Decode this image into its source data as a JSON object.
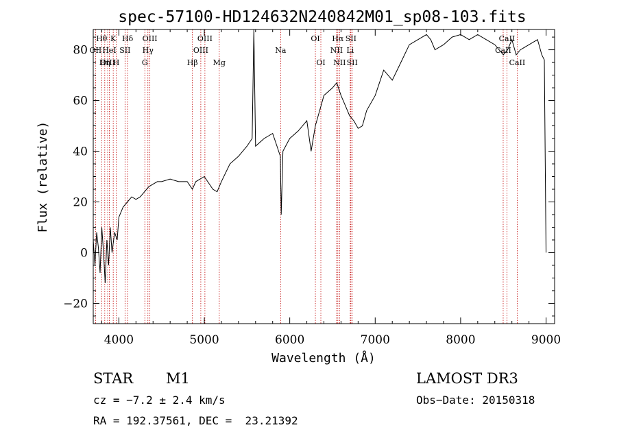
{
  "chart_data": {
    "type": "line",
    "title": "spec-57100-HD124632N240842M01_sp08-103.fits",
    "xlabel": "Wavelength (Å)",
    "ylabel": "Flux (relative)",
    "xlim": [
      3700,
      9100
    ],
    "ylim": [
      -28,
      88
    ],
    "xticks": [
      4000,
      5000,
      6000,
      7000,
      8000,
      9000
    ],
    "yticks": [
      -20,
      0,
      20,
      40,
      60,
      80
    ],
    "series": [
      {
        "name": "spectrum",
        "x": [
          3700,
          3720,
          3740,
          3760,
          3780,
          3800,
          3820,
          3840,
          3860,
          3880,
          3900,
          3920,
          3950,
          3980,
          4000,
          4050,
          4100,
          4150,
          4200,
          4250,
          4300,
          4350,
          4400,
          4450,
          4500,
          4600,
          4700,
          4800,
          4860,
          4900,
          5000,
          5100,
          5150,
          5200,
          5300,
          5400,
          5500,
          5560,
          5580,
          5600,
          5700,
          5800,
          5850,
          5890,
          5900,
          5920,
          6000,
          6100,
          6200,
          6250,
          6300,
          6400,
          6500,
          6550,
          6600,
          6650,
          6700,
          6750,
          6800,
          6850,
          6900,
          7000,
          7100,
          7150,
          7200,
          7300,
          7400,
          7500,
          7600,
          7650,
          7700,
          7800,
          7900,
          8000,
          8100,
          8200,
          8300,
          8400,
          8450,
          8500,
          8550,
          8600,
          8650,
          8700,
          8800,
          8900,
          8950,
          8980,
          9000
        ],
        "y": [
          5,
          -5,
          8,
          2,
          -8,
          10,
          0,
          -12,
          5,
          -5,
          10,
          0,
          8,
          5,
          14,
          18,
          20,
          22,
          21,
          22,
          24,
          26,
          27,
          28,
          28,
          29,
          28,
          28,
          25,
          28,
          30,
          25,
          24,
          28,
          35,
          38,
          42,
          45,
          88,
          42,
          45,
          47,
          42,
          38,
          15,
          40,
          45,
          48,
          52,
          40,
          50,
          62,
          65,
          67,
          62,
          58,
          54,
          52,
          49,
          50,
          56,
          62,
          72,
          70,
          68,
          75,
          82,
          84,
          86,
          84,
          80,
          82,
          85,
          86,
          84,
          86,
          84,
          82,
          80,
          78,
          80,
          84,
          78,
          80,
          82,
          84,
          78,
          76,
          0
        ]
      }
    ],
    "emission_lines": [
      {
        "label": "Hθ",
        "x": 3798,
        "row": 1
      },
      {
        "label": "K",
        "x": 3934,
        "row": 1
      },
      {
        "label": "Hδ",
        "x": 4102,
        "row": 1
      },
      {
        "label": "OIII",
        "x": 4363,
        "row": 1
      },
      {
        "label": "OIII",
        "x": 5007,
        "row": 1
      },
      {
        "label": "OI",
        "x": 6300,
        "row": 1
      },
      {
        "label": "Hα",
        "x": 6563,
        "row": 1
      },
      {
        "label": "SII",
        "x": 6716,
        "row": 1
      },
      {
        "label": "CaII",
        "x": 8542,
        "row": 1
      },
      {
        "label": "OII",
        "x": 3727,
        "row": 2
      },
      {
        "label": "HeI",
        "x": 3889,
        "row": 2
      },
      {
        "label": "SII",
        "x": 4072,
        "row": 2
      },
      {
        "label": "Hγ",
        "x": 4340,
        "row": 2
      },
      {
        "label": "OIII",
        "x": 4959,
        "row": 2
      },
      {
        "label": "Na",
        "x": 5893,
        "row": 2
      },
      {
        "label": "NII",
        "x": 6548,
        "row": 2
      },
      {
        "label": "Li",
        "x": 6708,
        "row": 2
      },
      {
        "label": "CaII",
        "x": 8498,
        "row": 2
      },
      {
        "label": "OIII",
        "x": 3869,
        "row": 3
      },
      {
        "label": "Hη",
        "x": 3835,
        "row": 3
      },
      {
        "label": "H",
        "x": 3969,
        "row": 3
      },
      {
        "label": "G",
        "x": 4304,
        "row": 3
      },
      {
        "label": "Hβ",
        "x": 4861,
        "row": 3
      },
      {
        "label": "Mg",
        "x": 5175,
        "row": 3
      },
      {
        "label": "OI",
        "x": 6364,
        "row": 3
      },
      {
        "label": "NII",
        "x": 6583,
        "row": 3
      },
      {
        "label": "SII",
        "x": 6731,
        "row": 3
      },
      {
        "label": "CaII",
        "x": 8662,
        "row": 3
      }
    ]
  },
  "info": {
    "class": "STAR",
    "subclass": "M1",
    "survey": "LAMOST DR3",
    "cz": "cz = −7.2 ± 2.4 km/s",
    "obs_date": "Obs−Date: 20150318",
    "radec": "RA = 192.37561, DEC =  23.21392"
  }
}
